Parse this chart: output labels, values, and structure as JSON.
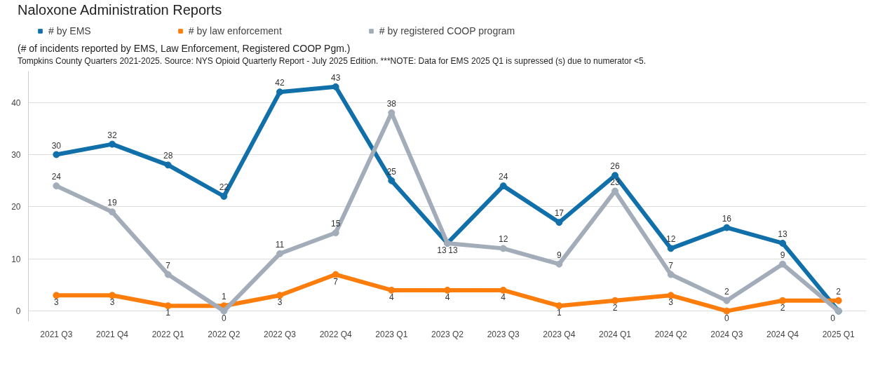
{
  "chart_data": {
    "type": "line",
    "title": "Naloxone Administration Reports",
    "subtitle": "(# of incidents reported by EMS, Law Enforcement, Registered COOP Pgm.)",
    "annotations": [
      "Tompkins County Quarters 2021-2025. Source: NYS Opioid Quarterly Report - July 2025 Edition.  ***NOTE: Data for EMS 2025 Q1 is supressed (s) due to numerator <5."
    ],
    "categories": [
      "2021 Q3",
      "2021 Q4",
      "2022 Q1",
      "2022 Q2",
      "2022 Q3",
      "2022 Q4",
      "2023 Q1",
      "2023 Q2",
      "2023 Q3",
      "2023 Q4",
      "2024 Q1",
      "2024 Q2",
      "2024 Q3",
      "2024 Q4",
      "2025 Q1"
    ],
    "series": [
      {
        "name": "# by EMS",
        "color": "#1170aa",
        "values": [
          30,
          32,
          28,
          22,
          42,
          43,
          25,
          13,
          24,
          17,
          26,
          12,
          16,
          13,
          0
        ]
      },
      {
        "name": "# by law enforcement",
        "color": "#fc7d0b",
        "values": [
          3,
          3,
          1,
          1,
          3,
          7,
          4,
          4,
          4,
          1,
          2,
          3,
          0,
          2,
          2
        ]
      },
      {
        "name": "# by registered COOP program",
        "color": "#a3acb9",
        "values": [
          24,
          19,
          7,
          0,
          11,
          15,
          38,
          13,
          12,
          9,
          23,
          7,
          2,
          9,
          0
        ],
        "value_labels": [
          "24",
          "19",
          "7",
          "0",
          "11",
          "15",
          "38",
          "13",
          "12",
          "9",
          "23",
          "7",
          "2",
          "9",
          null
        ]
      }
    ],
    "ylim": [
      -2,
      46
    ],
    "yticks": [
      0,
      10,
      20,
      30,
      40
    ],
    "grid": "y",
    "legend": "top left",
    "data_labels": true,
    "marker": "circle",
    "line_style": "solid"
  }
}
